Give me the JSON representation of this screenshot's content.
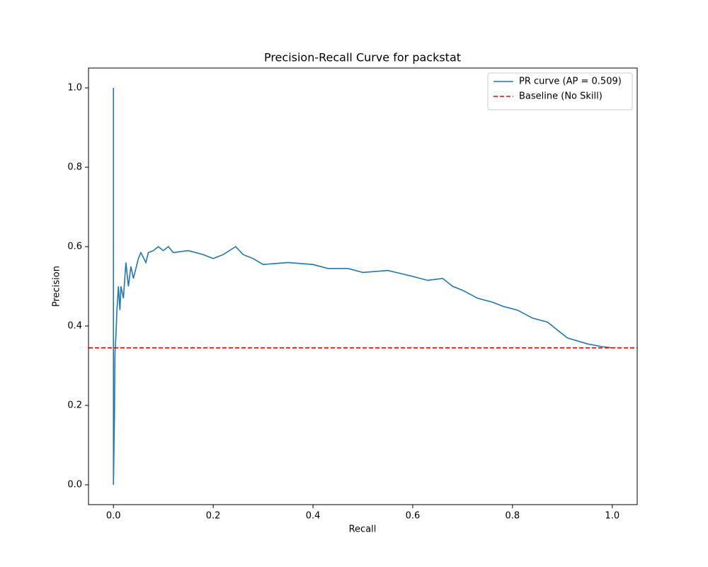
{
  "chart_data": {
    "type": "line",
    "title": "Precision-Recall Curve for packstat",
    "xlabel": "Recall",
    "ylabel": "Precision",
    "xlim": [
      -0.05,
      1.05
    ],
    "ylim": [
      -0.05,
      1.05
    ],
    "xticks": [
      {
        "value": 0,
        "label": "0.0"
      },
      0.2,
      0.4,
      0.6,
      0.8,
      {
        "value": 1,
        "label": "1.0"
      }
    ],
    "yticks": [
      {
        "value": 0,
        "label": "0.0"
      },
      0.2,
      0.4,
      0.6,
      0.8,
      {
        "value": 1,
        "label": "1.0"
      }
    ],
    "legend": "upper right",
    "series": [
      {
        "name": "PR curve (AP = 0.509)",
        "color": "#1f77b4",
        "x": [
          0,
          0,
          0.002,
          0.003,
          0.005,
          0.007,
          0.01,
          0.013,
          0.015,
          0.02,
          0.025,
          0.03,
          0.035,
          0.04,
          0.05,
          0.055,
          0.065,
          0.07,
          0.08,
          0.09,
          0.1,
          0.11,
          0.12,
          0.15,
          0.18,
          0.2,
          0.22,
          0.245,
          0.26,
          0.28,
          0.3,
          0.35,
          0.4,
          0.43,
          0.47,
          0.5,
          0.55,
          0.6,
          0.63,
          0.66,
          0.68,
          0.7,
          0.73,
          0.76,
          0.78,
          0.81,
          0.84,
          0.87,
          0.89,
          0.91,
          0.95,
          0.98,
          1
        ],
        "values": [
          1,
          0,
          0.17,
          0.33,
          0.375,
          0.44,
          0.5,
          0.44,
          0.5,
          0.47,
          0.56,
          0.5,
          0.55,
          0.52,
          0.57,
          0.585,
          0.56,
          0.585,
          0.59,
          0.6,
          0.59,
          0.6,
          0.585,
          0.59,
          0.58,
          0.57,
          0.58,
          0.6,
          0.58,
          0.57,
          0.555,
          0.56,
          0.555,
          0.545,
          0.545,
          0.535,
          0.54,
          0.525,
          0.515,
          0.52,
          0.5,
          0.49,
          0.47,
          0.46,
          0.45,
          0.44,
          0.42,
          0.41,
          0.39,
          0.37,
          0.355,
          0.348,
          0.345
        ]
      }
    ],
    "hlines": [
      {
        "name": "Baseline (No Skill)",
        "color": "#ff0000",
        "value": 0.345,
        "dashed": true
      }
    ]
  }
}
